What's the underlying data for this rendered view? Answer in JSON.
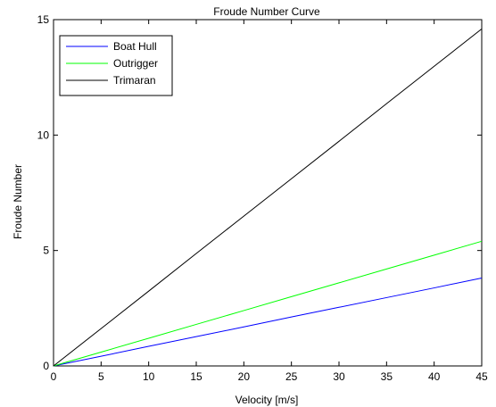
{
  "chart_data": {
    "type": "line",
    "title": "Froude Number Curve",
    "xlabel": "Velocity [m/s]",
    "ylabel": "Froude Number",
    "xlim": [
      0,
      45
    ],
    "ylim": [
      0,
      15
    ],
    "xticks": [
      0,
      5,
      10,
      15,
      20,
      25,
      30,
      35,
      40,
      45
    ],
    "yticks": [
      0,
      5,
      10,
      15
    ],
    "grid": false,
    "legend_position": "top-left",
    "x": [
      0,
      5,
      10,
      15,
      20,
      25,
      30,
      35,
      40,
      45
    ],
    "series": [
      {
        "name": "Boat Hull",
        "color": "#0000ff",
        "values": [
          0,
          0.42,
          0.85,
          1.27,
          1.69,
          2.12,
          2.54,
          2.96,
          3.38,
          3.81
        ]
      },
      {
        "name": "Outrigger",
        "color": "#00ff00",
        "values": [
          0,
          0.6,
          1.2,
          1.8,
          2.4,
          3.0,
          3.6,
          4.2,
          4.8,
          5.4
        ]
      },
      {
        "name": "Trimaran",
        "color": "#000000",
        "values": [
          0,
          1.62,
          3.24,
          4.87,
          6.49,
          8.11,
          9.73,
          11.36,
          12.98,
          14.6
        ]
      }
    ]
  }
}
